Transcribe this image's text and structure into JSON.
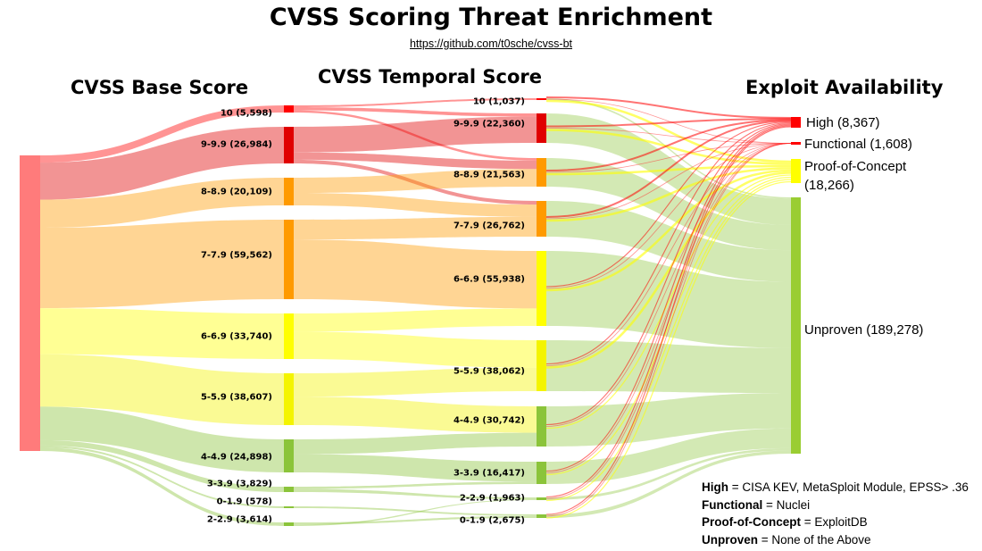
{
  "title": "CVSS Scoring Threat Enrichment",
  "subtitle": "https://github.com/t0sche/cvss-bt",
  "columns": {
    "base": "CVSS Base Score",
    "temporal": "CVSS Temporal Score",
    "exploit": "Exploit Availability"
  },
  "colors": {
    "10": "#ff0000",
    "9-9.9": "#e00000",
    "8-8.9": "#ff9a00",
    "7-7.9": "#ff9a00",
    "6-6.9": "#ffff00",
    "5-5.9": "#f4f400",
    "4-4.9": "#8bc43a",
    "3-3.9": "#8bc43a",
    "2-2.9": "#8bc43a",
    "0-1.9": "#8bc43a",
    "root": "#ff7b7b",
    "High": "#ff0000",
    "Functional": "#ff0000",
    "Proof-of-Concept": "#ffff00",
    "Unproven": "#9acd32"
  },
  "nodes": {
    "base": [
      {
        "id": "10",
        "label": "10 (5,598)"
      },
      {
        "id": "9-9.9",
        "label": "9-9.9 (26,984)"
      },
      {
        "id": "8-8.9",
        "label": "8-8.9 (20,109)"
      },
      {
        "id": "7-7.9",
        "label": "7-7.9 (59,562)"
      },
      {
        "id": "6-6.9",
        "label": "6-6.9 (33,740)"
      },
      {
        "id": "5-5.9",
        "label": "5-5.9 (38,607)"
      },
      {
        "id": "4-4.9",
        "label": "4-4.9 (24,898)"
      },
      {
        "id": "3-3.9",
        "label": "3-3.9 (3,829)"
      },
      {
        "id": "0-1.9",
        "label": "0-1.9 (578)"
      },
      {
        "id": "2-2.9",
        "label": "2-2.9 (3,614)"
      }
    ],
    "temporal": [
      {
        "id": "10",
        "label": "10 (1,037)"
      },
      {
        "id": "9-9.9",
        "label": "9-9.9 (22,360)"
      },
      {
        "id": "8-8.9",
        "label": "8-8.9 (21,563)"
      },
      {
        "id": "7-7.9",
        "label": "7-7.9 (26,762)"
      },
      {
        "id": "6-6.9",
        "label": "6-6.9 (55,938)"
      },
      {
        "id": "5-5.9",
        "label": "5-5.9 (38,062)"
      },
      {
        "id": "4-4.9",
        "label": "4-4.9 (30,742)"
      },
      {
        "id": "3-3.9",
        "label": "3-3.9 (16,417)"
      },
      {
        "id": "2-2.9",
        "label": "2-2.9 (1,963)"
      },
      {
        "id": "0-1.9",
        "label": "0-1.9 (2,675)"
      }
    ],
    "exploit": [
      {
        "id": "High",
        "label": "High (8,367)"
      },
      {
        "id": "Functional",
        "label": "Functional (1,608)"
      },
      {
        "id": "Proof-of-Concept",
        "label": "Proof-of-Concept (18,266)"
      },
      {
        "id": "Unproven",
        "label": "Unproven (189,278)"
      }
    ]
  },
  "legend": [
    {
      "term": "High",
      "desc": " = CISA KEV, MetaSploit Module, EPSS> .36"
    },
    {
      "term": "Functional",
      "desc": " = Nuclei"
    },
    {
      "term": "Proof-of-Concept",
      "desc": " = ExploitDB"
    },
    {
      "term": "Unproven",
      "desc": " = None of the Above"
    }
  ]
}
